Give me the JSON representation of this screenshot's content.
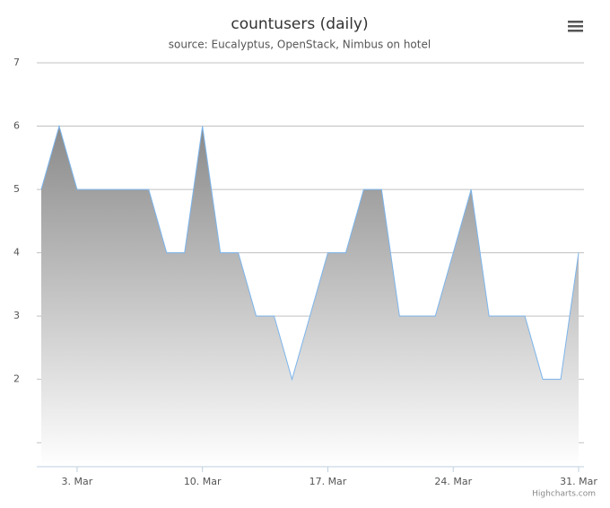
{
  "chart_data": {
    "type": "area",
    "title": "countusers (daily)",
    "subtitle": "source: Eucalyptus, OpenStack, Nimbus on hotel",
    "credits": "Highcharts.com",
    "x": [
      1,
      2,
      3,
      4,
      5,
      6,
      7,
      8,
      9,
      10,
      11,
      12,
      13,
      14,
      15,
      16,
      17,
      18,
      19,
      20,
      21,
      22,
      23,
      24,
      25,
      26,
      27,
      28,
      29,
      30,
      31
    ],
    "series": [
      {
        "color": "#7cb5ec",
        "values": [
          5,
          6,
          5,
          5,
          5,
          5,
          5,
          4,
          4,
          6,
          4,
          4,
          3,
          3,
          2,
          3,
          4,
          4,
          5,
          5,
          3,
          3,
          3,
          4,
          5,
          3,
          3,
          3,
          2,
          2,
          4
        ]
      }
    ],
    "xlim": [
      0.75,
      31.3
    ],
    "xticks": [
      {
        "value": 3,
        "label": "3. Mar"
      },
      {
        "value": 10,
        "label": "10. Mar"
      },
      {
        "value": 17,
        "label": "17. Mar"
      },
      {
        "value": 24,
        "label": "24. Mar"
      },
      {
        "value": 31,
        "label": "31. Mar"
      }
    ],
    "ylim": [
      0.62,
      7
    ],
    "yticks": [
      {
        "value": 1,
        "label": null
      },
      2,
      3,
      4,
      5,
      6,
      7
    ],
    "grid": true
  }
}
